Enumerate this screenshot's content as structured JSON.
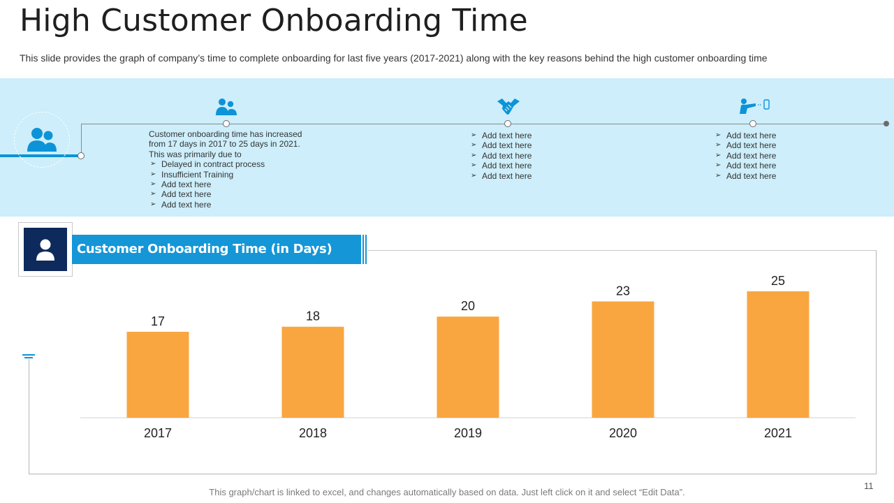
{
  "slide": {
    "title": "High Customer Onboarding Time",
    "subtitle": "This slide provides the graph of company’s time to complete onboarding for last five years (2017-2021) along with the key reasons behind the high customer onboarding time",
    "footer": "This graph/chart is linked to excel,  and changes automatically based on data. Just left click on it and select “Edit Data”.",
    "page_number": "11"
  },
  "timeline": {
    "stage1": {
      "icon": "users-icon",
      "intro": "Customer onboarding time has increased from 17 days in 2017 to 25 days in 2021. This was primarily due to",
      "items": [
        "Delayed in contract process",
        "Insufficient Training",
        "Add text here",
        "Add text here",
        "Add text here"
      ]
    },
    "stage2": {
      "icon": "handshake-icon",
      "items": [
        "Add text here",
        "Add text here",
        "Add text here",
        "Add text here",
        "Add text here"
      ]
    },
    "stage3": {
      "icon": "person-phone-icon",
      "items": [
        "Add text here",
        "Add text here",
        "Add text here",
        "Add text here",
        "Add text here"
      ]
    }
  },
  "colors": {
    "band": "#cdeefa",
    "accent": "#0c93d8",
    "bar": "#f9a640",
    "avatar_bg": "#0e2a5c"
  },
  "chart_data": {
    "type": "bar",
    "title": "Customer Onboarding Time (in Days)",
    "categories": [
      "2017",
      "2018",
      "2019",
      "2020",
      "2021"
    ],
    "values": [
      17,
      18,
      20,
      23,
      25
    ],
    "xlabel": "",
    "ylabel": "",
    "ylim": [
      0,
      25
    ],
    "grid": false,
    "legend": "none"
  }
}
